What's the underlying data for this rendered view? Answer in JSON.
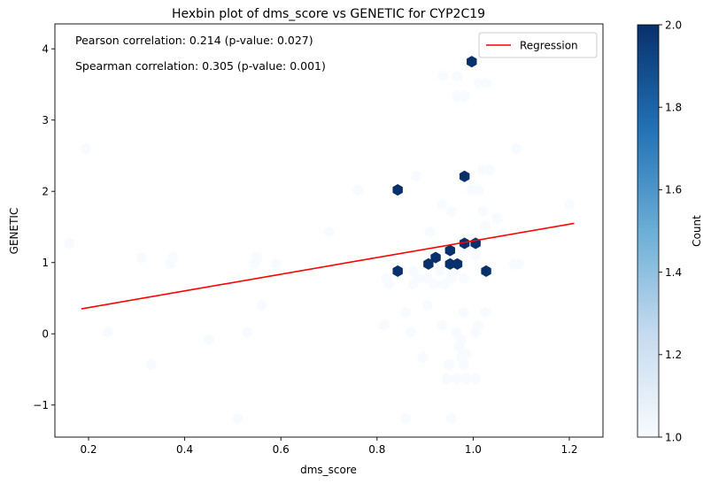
{
  "chart_data": {
    "type": "hexbin",
    "title": "Hexbin plot of dms_score vs GENETIC for CYP2C19",
    "xlabel": "dms_score",
    "ylabel": "GENETIC",
    "xlim": [
      0.13,
      1.27
    ],
    "ylim": [
      -1.45,
      4.35
    ],
    "xticks": [
      0.2,
      0.4,
      0.6,
      0.8,
      1.0,
      1.2
    ],
    "yticks": [
      -1,
      0,
      1,
      2,
      3,
      4
    ],
    "xtick_labels": [
      "0.2",
      "0.4",
      "0.6",
      "0.8",
      "1.0",
      "1.2"
    ],
    "ytick_labels": [
      "−1",
      "0",
      "1",
      "2",
      "3",
      "4"
    ],
    "annotations": [
      "Pearson correlation: 0.214 (p-value: 0.027)",
      "Spearman correlation: 0.305 (p-value: 0.001)"
    ],
    "legend": {
      "position": "top-right",
      "entries": [
        {
          "label": "Regression",
          "color": "#ff0000"
        }
      ]
    },
    "regression": {
      "x": [
        0.185,
        1.21
      ],
      "y": [
        0.35,
        1.55
      ],
      "color": "#ff0000"
    },
    "colorbar": {
      "label": "Count",
      "range": [
        1.0,
        2.0
      ],
      "ticks": [
        "1.0",
        "1.2",
        "1.4",
        "1.6",
        "1.8",
        "2.0"
      ],
      "colors": [
        "#f7fbff",
        "#08306b"
      ]
    },
    "hexbins_count2": [
      [
        0.997,
        3.82
      ],
      [
        0.982,
        2.21
      ],
      [
        0.843,
        2.02
      ],
      [
        0.982,
        1.27
      ],
      [
        1.005,
        1.27
      ],
      [
        0.952,
        1.17
      ],
      [
        0.922,
        1.07
      ],
      [
        0.907,
        0.98
      ],
      [
        0.952,
        0.98
      ],
      [
        0.967,
        0.98
      ],
      [
        0.843,
        0.88
      ],
      [
        1.027,
        0.88
      ]
    ],
    "hexbins_count1": [
      [
        0.194,
        2.6
      ],
      [
        1.09,
        2.6
      ],
      [
        0.937,
        3.62
      ],
      [
        0.967,
        3.62
      ],
      [
        1.012,
        3.52
      ],
      [
        1.027,
        3.52
      ],
      [
        0.967,
        3.33
      ],
      [
        0.982,
        3.33
      ],
      [
        1.02,
        2.3
      ],
      [
        1.035,
        2.3
      ],
      [
        0.882,
        2.21
      ],
      [
        0.76,
        2.02
      ],
      [
        0.997,
        2.02
      ],
      [
        1.012,
        2.02
      ],
      [
        1.2,
        1.82
      ],
      [
        0.935,
        1.82
      ],
      [
        0.955,
        1.72
      ],
      [
        1.02,
        1.72
      ],
      [
        1.05,
        1.62
      ],
      [
        1.025,
        1.52
      ],
      [
        0.7,
        1.43
      ],
      [
        0.91,
        1.43
      ],
      [
        1.06,
        1.4
      ],
      [
        0.16,
        1.27
      ],
      [
        0.985,
        1.2
      ],
      [
        1.005,
        1.1
      ],
      [
        0.375,
        1.07
      ],
      [
        0.31,
        1.07
      ],
      [
        0.55,
        1.07
      ],
      [
        0.59,
        0.98
      ],
      [
        0.37,
        0.98
      ],
      [
        0.545,
        0.98
      ],
      [
        1.085,
        0.98
      ],
      [
        1.095,
        0.98
      ],
      [
        0.85,
        0.9
      ],
      [
        0.875,
        0.88
      ],
      [
        0.93,
        0.88
      ],
      [
        0.96,
        0.88
      ],
      [
        0.82,
        0.78
      ],
      [
        0.885,
        0.78
      ],
      [
        0.905,
        0.78
      ],
      [
        0.955,
        0.78
      ],
      [
        0.98,
        0.78
      ],
      [
        0.825,
        0.7
      ],
      [
        0.875,
        0.7
      ],
      [
        0.92,
        0.7
      ],
      [
        0.94,
        0.7
      ],
      [
        0.56,
        0.4
      ],
      [
        0.905,
        0.4
      ],
      [
        0.86,
        0.3
      ],
      [
        0.98,
        0.3
      ],
      [
        1.025,
        0.3
      ],
      [
        0.815,
        0.12
      ],
      [
        0.935,
        0.12
      ],
      [
        1.01,
        0.12
      ],
      [
        0.24,
        0.02
      ],
      [
        0.53,
        0.02
      ],
      [
        0.87,
        0.02
      ],
      [
        0.965,
        0.02
      ],
      [
        1.005,
        0.02
      ],
      [
        0.45,
        -0.08
      ],
      [
        0.975,
        -0.08
      ],
      [
        0.97,
        -0.18
      ],
      [
        0.985,
        -0.28
      ],
      [
        0.895,
        -0.33
      ],
      [
        0.975,
        -0.33
      ],
      [
        0.33,
        -0.43
      ],
      [
        0.95,
        -0.43
      ],
      [
        0.98,
        -0.43
      ],
      [
        0.945,
        -0.63
      ],
      [
        0.965,
        -0.63
      ],
      [
        0.985,
        -0.63
      ],
      [
        1.005,
        -0.63
      ],
      [
        0.51,
        -1.19
      ],
      [
        0.86,
        -1.19
      ],
      [
        0.955,
        -1.19
      ]
    ]
  }
}
